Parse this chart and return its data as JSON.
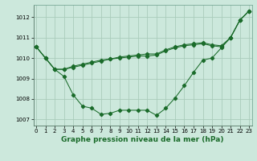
{
  "background_color": "#cce8dc",
  "grid_color": "#aaccbb",
  "line_color": "#1a6b2a",
  "title": "Graphe pression niveau de la mer (hPa)",
  "title_fontsize": 6.5,
  "ylim": [
    1006.7,
    1012.6
  ],
  "xlim": [
    -0.3,
    23.3
  ],
  "yticks": [
    1007,
    1008,
    1009,
    1010,
    1011,
    1012
  ],
  "xticks": [
    0,
    1,
    2,
    3,
    4,
    5,
    6,
    7,
    8,
    9,
    10,
    11,
    12,
    13,
    14,
    15,
    16,
    17,
    18,
    19,
    20,
    21,
    22,
    23
  ],
  "series1": [
    1010.55,
    1010.0,
    1009.45,
    1009.1,
    1008.2,
    1007.65,
    1007.55,
    1007.25,
    1007.3,
    1007.45,
    1007.45,
    1007.45,
    1007.45,
    1007.2,
    1007.55,
    1008.05,
    1008.65,
    1009.3,
    1009.9,
    1010.0,
    1010.5,
    1011.0,
    1011.85,
    1012.3
  ],
  "series2": [
    1010.55,
    1010.0,
    1009.45,
    1009.45,
    1009.55,
    1009.65,
    1009.75,
    1009.85,
    1009.95,
    1010.0,
    1010.05,
    1010.1,
    1010.1,
    1010.15,
    1010.35,
    1010.5,
    1010.6,
    1010.65,
    1010.7,
    1010.6,
    1010.55,
    1011.0,
    1011.85,
    1012.3
  ],
  "series3": [
    1010.55,
    1010.0,
    1009.45,
    1009.45,
    1009.6,
    1009.7,
    1009.8,
    1009.9,
    1009.95,
    1010.05,
    1010.1,
    1010.15,
    1010.2,
    1010.2,
    1010.4,
    1010.55,
    1010.65,
    1010.7,
    1010.75,
    1010.65,
    1010.6,
    1011.0,
    1011.85,
    1012.3
  ]
}
